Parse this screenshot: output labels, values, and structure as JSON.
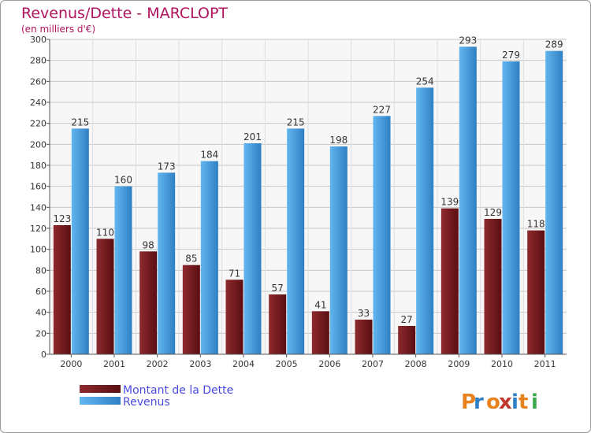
{
  "chart_data": {
    "type": "bar",
    "title": "Revenus/Dette - MARCLOPT",
    "subtitle": "(en milliers d'€)",
    "categories": [
      "2000",
      "2001",
      "2002",
      "2003",
      "2004",
      "2005",
      "2006",
      "2007",
      "2008",
      "2009",
      "2010",
      "2011"
    ],
    "series": [
      {
        "name": "Montant de la Dette",
        "values": [
          123,
          110,
          98,
          85,
          71,
          57,
          41,
          33,
          27,
          139,
          129,
          118
        ],
        "color": "#7a1e22",
        "color_dark": "#5a0e12"
      },
      {
        "name": "Revenus",
        "values": [
          215,
          160,
          173,
          184,
          201,
          215,
          198,
          227,
          254,
          293,
          279,
          289
        ],
        "color": "#58aeea",
        "color_dark": "#2f7fc4"
      }
    ],
    "ylim": [
      0,
      300
    ],
    "yticks": [
      0,
      20,
      40,
      60,
      80,
      100,
      120,
      140,
      160,
      180,
      200,
      220,
      240,
      260,
      280,
      300
    ],
    "grid": true,
    "legend_position": "bottom-left",
    "title_color": "#b0135f",
    "legend_text_color": "#4a4ae0"
  },
  "logo_text": "Proxiti"
}
